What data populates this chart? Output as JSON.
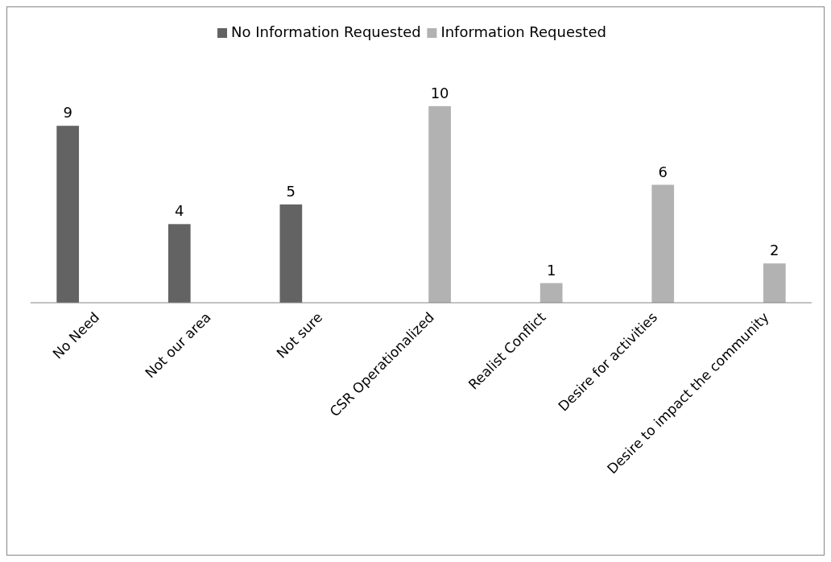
{
  "chart_data": {
    "type": "bar",
    "categories": [
      "No Need",
      "Not our area",
      "Not sure",
      "CSR Operationalized",
      "Realist Conflict",
      "Desire for activities",
      "Desire to impact the community"
    ],
    "series": [
      {
        "name": "No Information Requested",
        "color": "#636363",
        "values": [
          9,
          4,
          5,
          null,
          null,
          null,
          null
        ]
      },
      {
        "name": "Information Requested",
        "color": "#b2b2b2",
        "values": [
          null,
          null,
          null,
          10,
          1,
          6,
          2
        ]
      }
    ],
    "data_labels": true,
    "legend": "top"
  }
}
